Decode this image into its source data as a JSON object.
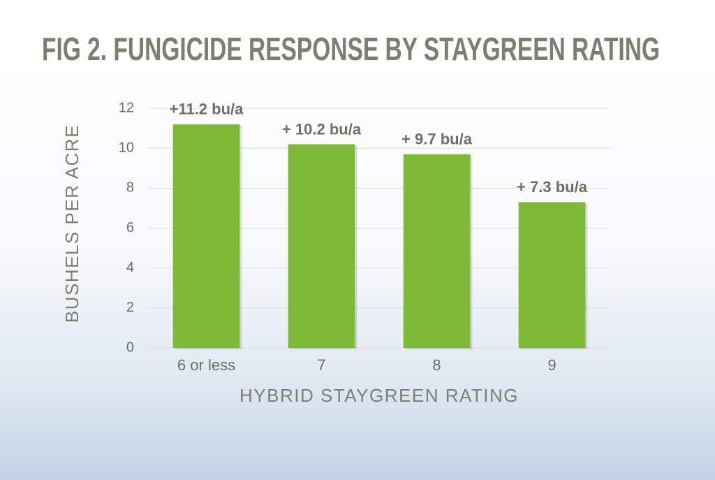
{
  "chart_data": {
    "type": "bar",
    "title": "FIG 2.  FUNGICIDE RESPONSE BY STAYGREEN RATING",
    "x_label": "HYBRID STAYGREEN RATING",
    "y_label": "BUSHELS PER ACRE",
    "categories": [
      "6 or less",
      "7",
      "8",
      "9"
    ],
    "values": [
      11.2,
      10.2,
      9.7,
      7.3
    ],
    "value_labels": [
      "+11.2 bu/a",
      "+ 10.2 bu/a",
      "+ 9.7 bu/a",
      "+ 7.3 bu/a"
    ],
    "color": "#7dba35",
    "ylim": [
      0,
      12
    ],
    "yticks": [
      0,
      2,
      4,
      6,
      8,
      10,
      12
    ],
    "grid": true
  }
}
